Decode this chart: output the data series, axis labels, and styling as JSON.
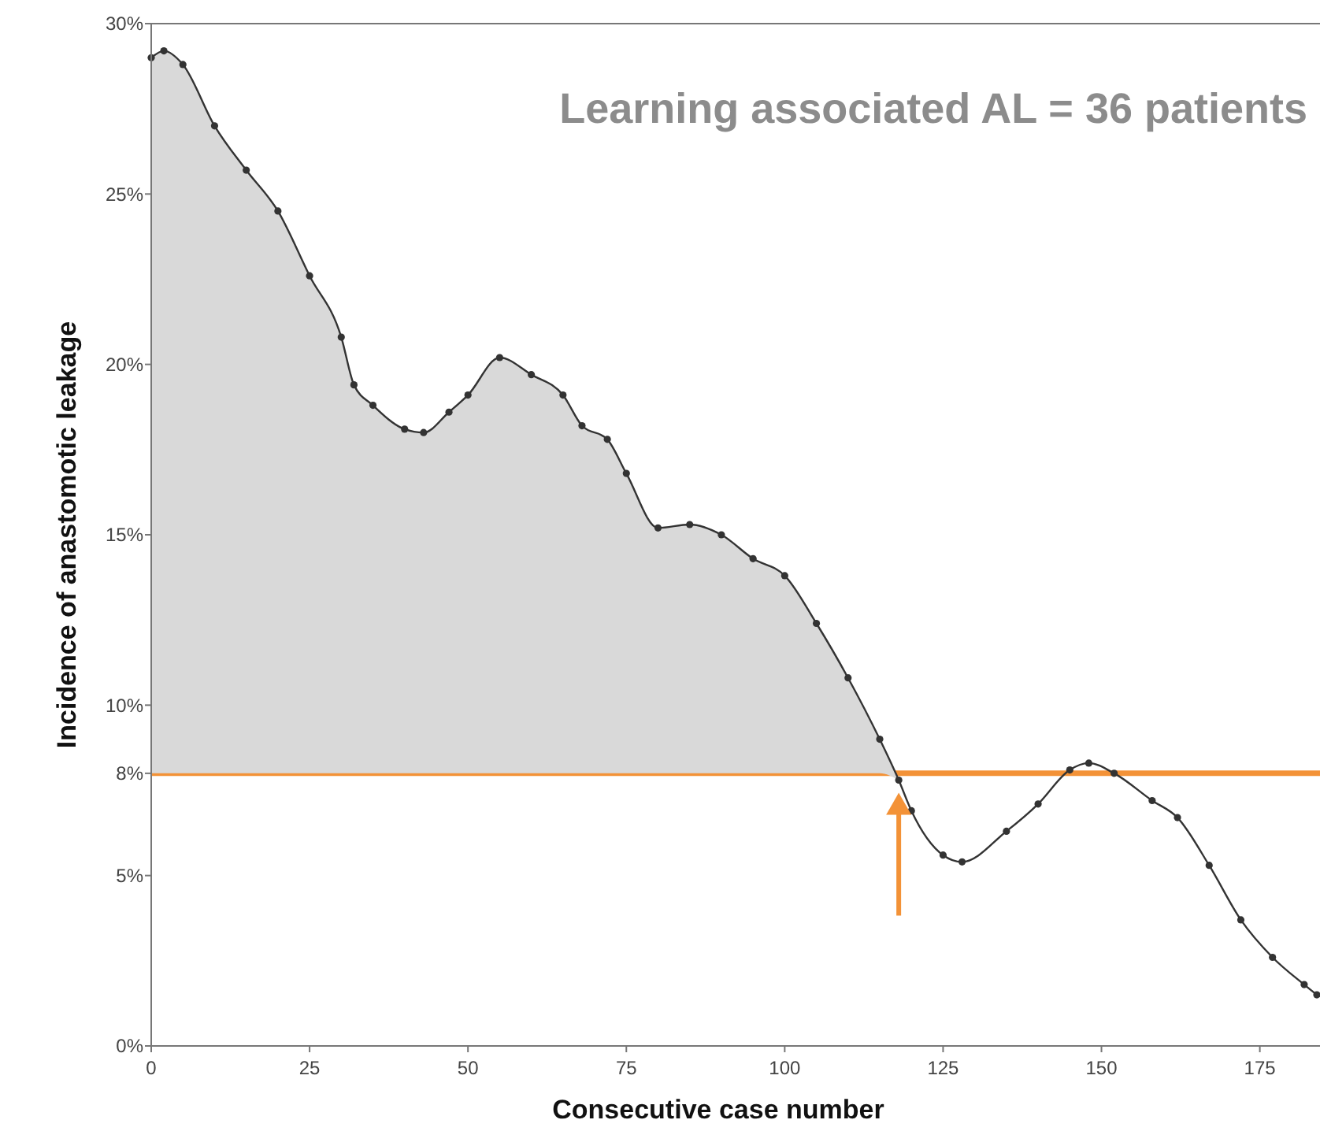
{
  "chart_data": {
    "type": "line",
    "xlabel": "Consecutive case number",
    "ylabel": "Incidence of anastomotic leakage",
    "annotations": [
      "Learning associated AL = 36 patients"
    ],
    "xlim": [
      0,
      184
    ],
    "xticks": [
      0,
      25,
      50,
      75,
      100,
      125,
      150,
      175
    ],
    "ylim": [
      0,
      30
    ],
    "yticks": [
      {
        "value": 0,
        "label": "0%"
      },
      {
        "value": 5,
        "label": "5%"
      },
      {
        "value": 8,
        "label": "8%"
      },
      {
        "value": 10,
        "label": "10%"
      },
      {
        "value": 15,
        "label": "15%"
      },
      {
        "value": 20,
        "label": "20%"
      },
      {
        "value": 25,
        "label": "25%"
      },
      {
        "value": 30,
        "label": "30%"
      }
    ],
    "marker": "circle",
    "grid": false,
    "ref_lines": [
      {
        "axis": "y",
        "value": 8,
        "color": "#f39237"
      }
    ],
    "series": [
      {
        "color": "#333333",
        "x": [
          0,
          2,
          5,
          10,
          15,
          20,
          25,
          30,
          32,
          35,
          40,
          43,
          47,
          50,
          55,
          60,
          65,
          68,
          72,
          75,
          80,
          85,
          90,
          95,
          100,
          105,
          110,
          115,
          118,
          120,
          125,
          128,
          135,
          140,
          145,
          148,
          152,
          158,
          162,
          167,
          172,
          177,
          182,
          184
        ],
        "values": [
          29.0,
          29.2,
          28.8,
          27.0,
          25.7,
          24.5,
          22.6,
          20.8,
          19.4,
          18.8,
          18.1,
          18.0,
          18.6,
          19.1,
          20.2,
          19.7,
          19.1,
          18.2,
          17.8,
          16.8,
          15.2,
          15.3,
          15.0,
          14.3,
          13.8,
          12.4,
          10.8,
          9.0,
          7.8,
          6.9,
          5.6,
          5.4,
          6.3,
          7.1,
          8.1,
          8.3,
          8.0,
          7.2,
          6.7,
          5.3,
          3.7,
          2.6,
          1.8,
          1.5
        ],
        "lower": [
          8,
          8,
          8,
          8,
          8,
          8,
          8,
          8,
          8,
          8,
          8,
          8,
          8,
          8,
          8,
          8,
          8,
          8,
          8,
          8,
          8,
          8,
          8,
          8,
          8,
          8,
          8,
          8,
          7.8,
          null,
          null,
          null,
          null,
          null,
          null,
          null,
          null,
          null,
          null,
          null,
          null,
          null,
          null,
          null
        ],
        "upper": [
          29.0,
          29.2,
          28.8,
          27.0,
          25.7,
          24.5,
          22.6,
          20.8,
          19.4,
          18.8,
          18.1,
          18.0,
          18.6,
          19.1,
          20.2,
          19.7,
          19.1,
          18.2,
          17.8,
          16.8,
          15.2,
          15.3,
          15.0,
          14.3,
          13.8,
          12.4,
          10.8,
          9.0,
          7.8,
          null,
          null,
          null,
          null,
          null,
          null,
          null,
          null,
          null,
          null,
          null,
          null,
          null,
          null,
          null
        ]
      }
    ]
  }
}
